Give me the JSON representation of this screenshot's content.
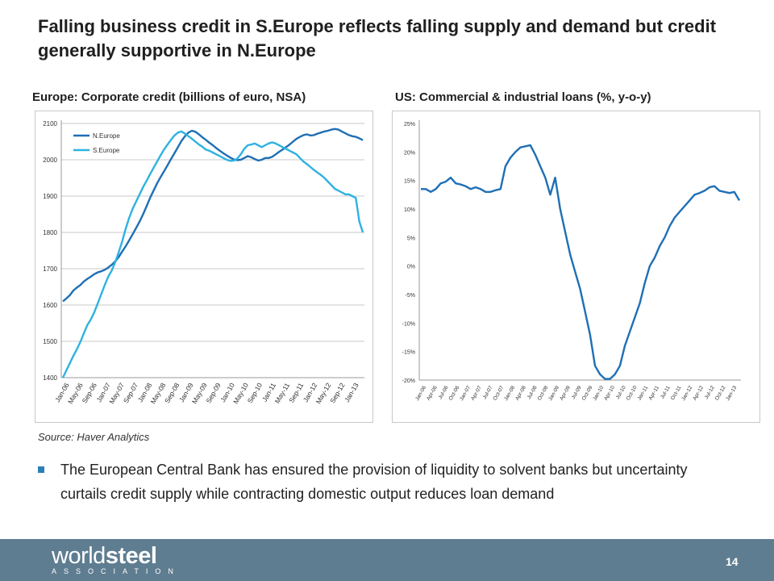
{
  "slide": {
    "title": "Falling business credit in S.Europe reflects falling supply and demand but credit generally supportive in N.Europe",
    "source": "Source: Haver Analytics",
    "bullet": "The European Central Bank has ensured the provision of liquidity to solvent banks but uncertainty curtails credit supply while contracting domestic output reduces loan demand",
    "page_number": "14",
    "logo": {
      "word_light": "world",
      "word_bold": "steel",
      "sub": "ASSOCIATION"
    },
    "colors": {
      "footer": "#5f7d91",
      "bullet": "#2b7fb8",
      "dark_series": "#1f6fb5",
      "light_series": "#2eb2e0"
    }
  },
  "chart_data": [
    {
      "type": "line",
      "title": "Europe: Corporate credit (billions of euro, NSA)",
      "ylim": [
        1400,
        2100
      ],
      "yticks": [
        "1400",
        "1500",
        "1600",
        "1700",
        "1800",
        "1900",
        "2000",
        "2100"
      ],
      "grid": true,
      "legend": "top-left",
      "x_labels": [
        "Jan-06",
        "May-06",
        "Sep-06",
        "Jan-07",
        "May-07",
        "Sep-07",
        "Jan-08",
        "May-08",
        "Sep-08",
        "Jan-09",
        "May-09",
        "Sep-09",
        "Jan-10",
        "May-10",
        "Sep-10",
        "Jan-11",
        "May-11",
        "Sep-11",
        "Jan-12",
        "May-12",
        "Sep-12",
        "Jan-13"
      ],
      "series": [
        {
          "name": "N.Europe",
          "color": "#1f6fb5",
          "values": [
            1610,
            1618,
            1627,
            1640,
            1648,
            1655,
            1665,
            1672,
            1678,
            1685,
            1690,
            1693,
            1697,
            1703,
            1711,
            1720,
            1732,
            1747,
            1762,
            1778,
            1795,
            1812,
            1830,
            1850,
            1872,
            1895,
            1915,
            1935,
            1952,
            1968,
            1985,
            2002,
            2018,
            2035,
            2052,
            2065,
            2075,
            2080,
            2077,
            2070,
            2062,
            2055,
            2047,
            2040,
            2032,
            2025,
            2018,
            2012,
            2006,
            2001,
            1999,
            2000,
            2005,
            2010,
            2007,
            2002,
            1998,
            2000,
            2005,
            2005,
            2008,
            2015,
            2022,
            2028,
            2035,
            2042,
            2050,
            2058,
            2063,
            2068,
            2070,
            2067,
            2068,
            2072,
            2075,
            2078,
            2080,
            2083,
            2085,
            2083,
            2078,
            2073,
            2068,
            2065,
            2063,
            2059,
            2054
          ]
        },
        {
          "name": "S.Europe",
          "color": "#2eb2e0",
          "values": [
            1400,
            1420,
            1440,
            1460,
            1478,
            1498,
            1522,
            1545,
            1560,
            1580,
            1605,
            1630,
            1655,
            1678,
            1695,
            1718,
            1745,
            1775,
            1810,
            1840,
            1865,
            1885,
            1905,
            1925,
            1942,
            1960,
            1978,
            1995,
            2012,
            2028,
            2042,
            2055,
            2067,
            2075,
            2078,
            2072,
            2065,
            2058,
            2050,
            2042,
            2036,
            2028,
            2025,
            2020,
            2015,
            2010,
            2005,
            2000,
            1997,
            1998,
            2003,
            2015,
            2030,
            2040,
            2042,
            2045,
            2040,
            2035,
            2040,
            2045,
            2048,
            2045,
            2040,
            2035,
            2030,
            2025,
            2020,
            2015,
            2005,
            1995,
            1988,
            1980,
            1972,
            1965,
            1958,
            1950,
            1940,
            1930,
            1920,
            1915,
            1910,
            1905,
            1905,
            1900,
            1895,
            1830,
            1800
          ]
        }
      ]
    },
    {
      "type": "line",
      "title": "US: Commercial & industrial loans (%, y-o-y)",
      "ylim": [
        -20,
        25
      ],
      "yticks": [
        "-20%",
        "-15%",
        "-10%",
        "-5%",
        "0%",
        "5%",
        "10%",
        "15%",
        "20%",
        "25%"
      ],
      "grid": false,
      "x_labels": [
        "Jan-06",
        "Apr-06",
        "Jul-06",
        "Oct-06",
        "Jan-07",
        "Apr-07",
        "Jul-07",
        "Oct-07",
        "Jan-08",
        "Apr-08",
        "Jul-08",
        "Oct-08",
        "Jan-09",
        "Apr-09",
        "Jul-09",
        "Oct-09",
        "Jan-10",
        "Apr-10",
        "Jul-10",
        "Oct-10",
        "Jan-11",
        "Apr-11",
        "Jul-11",
        "Oct-11",
        "Jan-12",
        "Apr-12",
        "Jul-12",
        "Oct-12",
        "Jan-13"
      ],
      "series": [
        {
          "name": "",
          "color": "#1f6fb5",
          "values": [
            13.5,
            13.5,
            13.0,
            13.5,
            14.5,
            14.8,
            15.5,
            14.5,
            14.3,
            14.0,
            13.5,
            13.8,
            13.5,
            13.0,
            13.0,
            13.3,
            13.5,
            17.5,
            19.0,
            20.0,
            20.8,
            21.0,
            21.2,
            19.5,
            17.5,
            15.5,
            12.5,
            15.5,
            10.0,
            6.0,
            2.0,
            -1.0,
            -4.0,
            -8.0,
            -12.0,
            -17.5,
            -19.0,
            -19.8,
            -19.8,
            -19.0,
            -17.5,
            -14.0,
            -11.5,
            -9.0,
            -6.5,
            -3.0,
            0.0,
            1.5,
            3.5,
            5.0,
            7.0,
            8.5,
            9.5,
            10.5,
            11.5,
            12.5,
            12.8,
            13.2,
            13.8,
            14.0,
            13.2,
            13.0,
            12.8,
            13.0,
            11.5
          ]
        }
      ]
    }
  ]
}
